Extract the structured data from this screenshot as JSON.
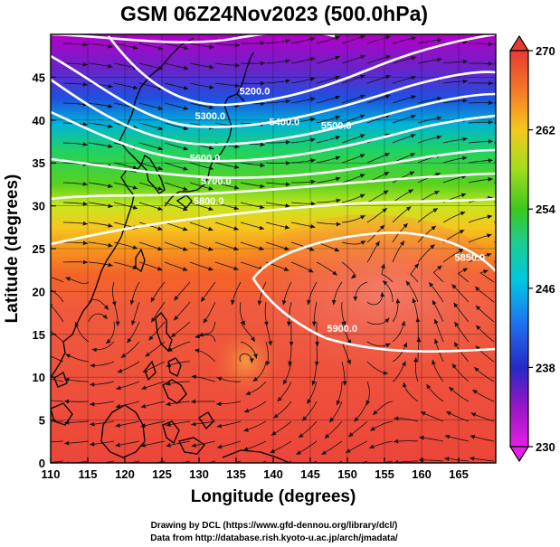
{
  "chart_data": {
    "type": "heatmap",
    "title": "GSM 06Z24Nov2023 (500.0hPa)",
    "xlabel": "Longitude (degrees)",
    "ylabel": "Latitude  (degrees)",
    "xlim": [
      110,
      170
    ],
    "ylim": [
      0,
      50
    ],
    "x_ticks": [
      110,
      115,
      120,
      125,
      130,
      135,
      140,
      145,
      150,
      155,
      160,
      165
    ],
    "y_ticks": [
      0,
      5,
      10,
      15,
      20,
      25,
      30,
      35,
      40,
      45
    ],
    "colorbar": {
      "min": 230,
      "max": 270,
      "ticks": [
        230,
        238,
        246,
        254,
        262,
        270
      ]
    },
    "contour_labels": [
      {
        "text": "5200.0",
        "lon": 137.5,
        "lat": 43.4
      },
      {
        "text": "5300.0",
        "lon": 131.5,
        "lat": 40.5
      },
      {
        "text": "5400.0",
        "lon": 141.5,
        "lat": 39.8
      },
      {
        "text": "5500.0",
        "lon": 148.5,
        "lat": 39.4
      },
      {
        "text": "5600.0",
        "lon": 130.8,
        "lat": 35.6
      },
      {
        "text": "5700.0",
        "lon": 132.3,
        "lat": 32.9
      },
      {
        "text": "5800.0",
        "lon": 131.3,
        "lat": 30.6
      },
      {
        "text": "5850.0",
        "lon": 166.5,
        "lat": 24.0
      },
      {
        "text": "5900.0",
        "lon": 149.3,
        "lat": 15.7
      }
    ],
    "grid": true,
    "colormap": "magenta-blue-cyan-green-yellow-orange-red",
    "credits": [
      "Drawing by DCL (https://www.gfd-dennou.org/library/dcl/)",
      "Data from http://database.rish.kyoto-u.ac.jp/arch/jmadata/"
    ]
  }
}
